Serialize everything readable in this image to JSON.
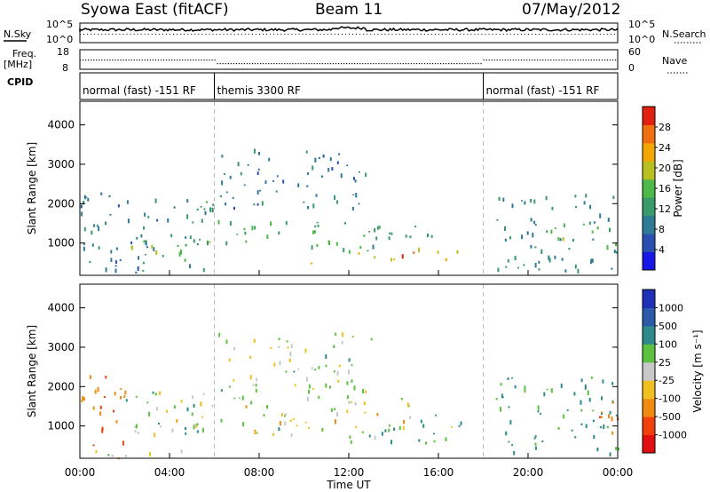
{
  "header": {
    "station": "Syowa East (fitACF)",
    "beam": "Beam 11",
    "date": "07/May/2012"
  },
  "noise_panel": {
    "left_label": "N.Sky",
    "right_label": "N.Search",
    "ticks_left": [
      "10^5",
      "10^0"
    ],
    "ticks_right": [
      "10^5",
      "10^0"
    ]
  },
  "freq_panel": {
    "left_label_1": "Freq.",
    "left_label_2": "[MHz]",
    "right_label": "Nave",
    "ticks_left": [
      "18",
      "8"
    ],
    "ticks_right": [
      "60",
      "0"
    ]
  },
  "cpid_panel": {
    "label": "CPID",
    "segments": [
      {
        "label": "normal (fast) -151 RF",
        "start_hour": 0,
        "end_hour": 6
      },
      {
        "label": "themis 3300 RF",
        "start_hour": 6,
        "end_hour": 18
      },
      {
        "label": "normal (fast) -151 RF",
        "start_hour": 18,
        "end_hour": 24
      }
    ]
  },
  "axis": {
    "x_ticks": [
      "00:00",
      "04:00",
      "08:00",
      "12:00",
      "16:00",
      "20:00",
      "00:00"
    ],
    "x_label": "Time UT",
    "y_label_power": "Slant Range [km]",
    "y_label_velocity": "Slant Range [km]",
    "y_ticks": [
      "1000",
      "2000",
      "3000",
      "4000"
    ]
  },
  "power_scale": {
    "label": "Power [dB]",
    "ticks": [
      "4",
      "8",
      "12",
      "16",
      "20",
      "24",
      "28"
    ],
    "colors": [
      "#1717e6",
      "#2a4fb0",
      "#2f7a96",
      "#3a9a6a",
      "#4fb84a",
      "#b8c020",
      "#f2a800",
      "#f07010",
      "#e02010"
    ]
  },
  "velocity_scale": {
    "label": "Velocity [m s⁻¹]",
    "ticks": [
      "1000",
      "500",
      "100",
      "25",
      "-25",
      "-100",
      "-500",
      "-1000"
    ],
    "colors": [
      "#1f2fb8",
      "#2a5aa8",
      "#2f8a8a",
      "#5cc040",
      "#c8c8c8",
      "#f0c020",
      "#f08a10",
      "#f04010",
      "#e01010"
    ]
  },
  "chart_data": [
    {
      "type": "heatmap",
      "title": "Power",
      "xlabel": "Time UT",
      "ylabel": "Slant Range [km]",
      "x_range_hours": [
        0,
        24
      ],
      "ylim": [
        180,
        4600
      ],
      "colorbar": {
        "label": "Power [dB]",
        "range": [
          0,
          30
        ],
        "ticks": [
          4,
          8,
          12,
          16,
          20,
          24,
          28
        ]
      },
      "regions": [
        {
          "t0": 0,
          "t1": 6.0,
          "r0": 250,
          "r1": 2300,
          "level": 9
        },
        {
          "t0": 1.8,
          "t1": 5.8,
          "r0": 600,
          "r1": 1100,
          "level": 15
        },
        {
          "t0": 3.8,
          "t1": 6.5,
          "r0": 1700,
          "r1": 2100,
          "level": 13
        },
        {
          "t0": 6,
          "t1": 12,
          "r0": 1000,
          "r1": 1600,
          "level": 14
        },
        {
          "t0": 6,
          "t1": 13,
          "r0": 1900,
          "r1": 3400,
          "level": 9
        },
        {
          "t0": 10,
          "t1": 16,
          "r0": 800,
          "r1": 1500,
          "level": 12
        },
        {
          "t0": 12,
          "t1": 17,
          "r0": 600,
          "r1": 900,
          "level": 20
        },
        {
          "t0": 12.5,
          "t1": 15,
          "r0": 650,
          "r1": 800,
          "level": 27
        },
        {
          "t0": 10,
          "t1": 10.6,
          "r0": 350,
          "r1": 550,
          "level": 21
        },
        {
          "t0": 18.5,
          "t1": 24,
          "r0": 300,
          "r1": 2300,
          "level": 10
        },
        {
          "t0": 21,
          "t1": 24,
          "r0": 900,
          "r1": 1500,
          "level": 16
        }
      ]
    },
    {
      "type": "heatmap",
      "title": "Velocity",
      "xlabel": "Time UT",
      "ylabel": "Slant Range [km]",
      "x_range_hours": [
        0,
        24
      ],
      "ylim": [
        180,
        4600
      ],
      "colorbar": {
        "label": "Velocity [m s⁻¹]",
        "ticks": [
          1000,
          500,
          100,
          25,
          -25,
          -100,
          -500,
          -1000
        ]
      },
      "regions": [
        {
          "t0": 0,
          "t1": 2.2,
          "r0": 500,
          "r1": 2300,
          "velocity": -300
        },
        {
          "t0": 0,
          "t1": 5,
          "r0": 200,
          "r1": 450,
          "velocity": -60
        },
        {
          "t0": 2,
          "t1": 6,
          "r0": 700,
          "r1": 1900,
          "velocity": 80
        },
        {
          "t0": 4,
          "t1": 15,
          "r0": 800,
          "r1": 1800,
          "velocity": 0
        },
        {
          "t0": 6,
          "t1": 13,
          "r0": 1900,
          "r1": 3400,
          "velocity": 20
        },
        {
          "t0": 12,
          "t1": 17,
          "r0": 600,
          "r1": 1300,
          "velocity": 70
        },
        {
          "t0": 18.5,
          "t1": 24,
          "r0": 300,
          "r1": 2300,
          "velocity": 150
        },
        {
          "t0": 22.5,
          "t1": 24,
          "r0": 800,
          "r1": 1700,
          "velocity": -250
        }
      ]
    }
  ]
}
